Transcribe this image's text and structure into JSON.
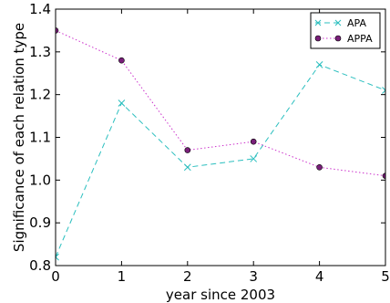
{
  "chart_data": {
    "type": "line",
    "title": "",
    "xlabel": "year since 2003",
    "ylabel": "Significance of each relation type",
    "x": [
      0,
      1,
      2,
      3,
      4,
      5
    ],
    "xlim": [
      0,
      5
    ],
    "ylim": [
      0.8,
      1.4
    ],
    "xticks": [
      "0",
      "1",
      "2",
      "3",
      "4",
      "5"
    ],
    "yticks": [
      "0.8",
      "0.9",
      "1.0",
      "1.1",
      "1.2",
      "1.3",
      "1.4"
    ],
    "grid": false,
    "legend_position": "top-right",
    "series": [
      {
        "name": "APA",
        "values": [
          0.82,
          1.18,
          1.03,
          1.05,
          1.27,
          1.21
        ],
        "color": "#2bbfbf",
        "line_style": "dashed",
        "marker": "x"
      },
      {
        "name": "APPA",
        "values": [
          1.35,
          1.28,
          1.07,
          1.09,
          1.03,
          1.01
        ],
        "color": "#cc33cc",
        "marker_fill": "#7a1f7a",
        "line_style": "dotted",
        "marker": "circle"
      }
    ]
  }
}
